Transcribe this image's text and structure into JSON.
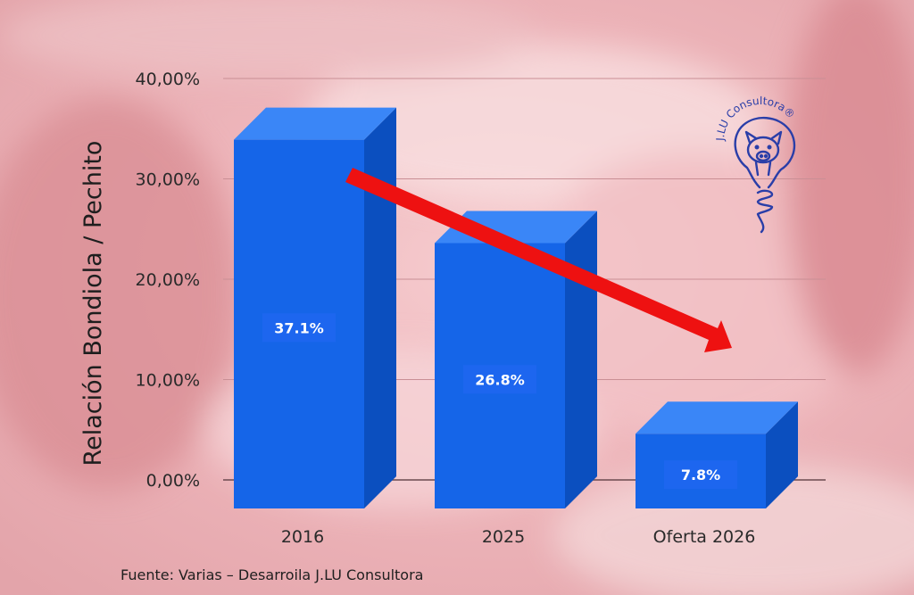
{
  "chart_data": {
    "type": "bar",
    "categories": [
      "2016",
      "2025",
      "Oferta 2026"
    ],
    "values": [
      37.1,
      26.8,
      7.8
    ],
    "data_labels": [
      "37.1%",
      "26.8%",
      "7.8%"
    ],
    "ylabel": "Relación Bondiola / Pechito",
    "ylim": [
      0,
      40
    ],
    "yticks": [
      "0,00%",
      "10,00%",
      "20,00%",
      "30,00%",
      "40,00%"
    ],
    "grid": true,
    "trend_arrow": true,
    "colors": {
      "bar_front": "#1565e8",
      "bar_side": "#0b4fbf",
      "bar_top": "#3a86f7",
      "label_box": "#1d66ef",
      "arrow": "#ee1111"
    }
  },
  "source": "Fuente: Varias – Desarroila J.LU Consultora",
  "logo": {
    "text": "J.LU Consultora®",
    "icon": "pig-lightbulb-icon"
  }
}
